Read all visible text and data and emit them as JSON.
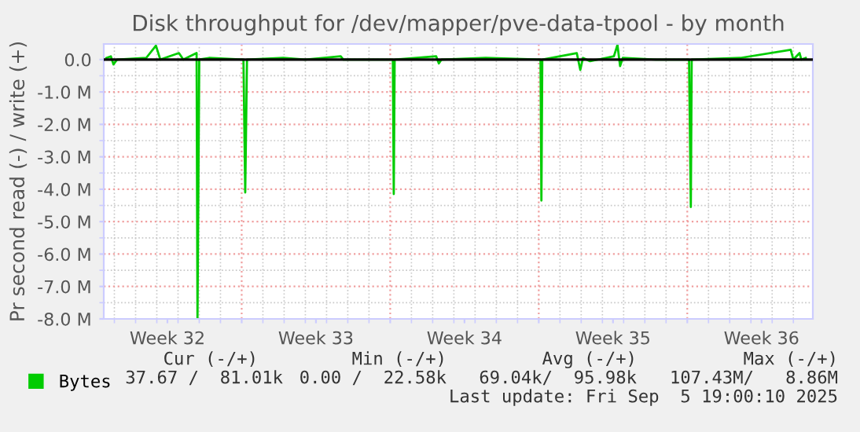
{
  "chart_data": {
    "type": "line",
    "title": "Disk throughput for /dev/mapper/pve-data-tpool - by month",
    "ylabel": "Pr second read (-) / write (+)",
    "x": [
      "2025-08-04T15:00",
      "2025-08-04T20:00",
      "2025-08-04T23:00",
      "2025-08-05T03:00",
      "2025-08-06T12:00",
      "2025-08-06T23:00",
      "2025-08-07T04:00",
      "2025-08-08T01:00",
      "2025-08-08T06:00",
      "2025-08-08T21:00",
      "2025-08-08T22:00",
      "2025-08-09T00:00",
      "2025-08-09T11:00",
      "2025-08-11T02:00",
      "2025-08-11T04:00",
      "2025-08-11T06:00",
      "2025-08-12T23:00",
      "2025-08-14T00:00",
      "2025-08-15T16:00",
      "2025-08-15T19:00",
      "2025-08-18T03:00",
      "2025-08-18T04:00",
      "2025-08-18T05:00",
      "2025-08-20T04:00",
      "2025-08-20T07:00",
      "2025-08-20T10:00",
      "2025-08-22T12:00",
      "2025-08-25T02:00",
      "2025-08-25T03:00",
      "2025-08-25T04:00",
      "2025-08-26T19:00",
      "2025-08-26T23:00",
      "2025-08-27T02:00",
      "2025-08-27T10:00",
      "2025-08-28T13:00",
      "2025-08-28T17:00",
      "2025-08-28T20:00",
      "2025-08-28T23:00",
      "2025-08-30T12:00",
      "2025-09-01T02:00",
      "2025-09-01T04:00",
      "2025-09-01T05:00",
      "2025-09-03T12:00",
      "2025-09-05T21:00",
      "2025-09-06T00:00",
      "2025-09-06T07:00",
      "2025-09-06T09:00",
      "2025-09-06T14:00"
    ],
    "series": [
      {
        "name": "Bytes",
        "color": "#00cc00",
        "values": [
          50000,
          100000,
          -150000,
          0,
          50000,
          430000,
          0,
          200000,
          0,
          200000,
          -8000000,
          0,
          50000,
          0,
          -4100000,
          0,
          50000,
          0,
          100000,
          0,
          0,
          -4150000,
          0,
          100000,
          -120000,
          0,
          50000,
          0,
          -4350000,
          0,
          200000,
          -320000,
          50000,
          -50000,
          100000,
          450000,
          -200000,
          50000,
          0,
          0,
          -4550000,
          0,
          50000,
          300000,
          0,
          200000,
          0,
          50000
        ]
      }
    ],
    "xlim": [
      "2025-08-04T12:00",
      "2025-09-06T22:00"
    ],
    "xticks": [
      {
        "value": "2025-08-07T12:00",
        "label": "Week 32"
      },
      {
        "value": "2025-08-11",
        "label": null
      },
      {
        "value": "2025-08-14T12:00",
        "label": "Week 33"
      },
      {
        "value": "2025-08-18",
        "label": null
      },
      {
        "value": "2025-08-21T12:00",
        "label": "Week 34"
      },
      {
        "value": "2025-08-25",
        "label": null
      },
      {
        "value": "2025-08-28T12:00",
        "label": "Week 35"
      },
      {
        "value": "2025-09-01",
        "label": null
      },
      {
        "value": "2025-09-04T12:00",
        "label": "Week 36"
      }
    ],
    "ylim": [
      -8000000,
      480000
    ],
    "yticks": [
      {
        "value": -8000000,
        "label": "-8.0 M"
      },
      {
        "value": -7000000,
        "label": "-7.0 M"
      },
      {
        "value": -6000000,
        "label": "-6.0 M"
      },
      {
        "value": -5000000,
        "label": "-5.0 M"
      },
      {
        "value": -4000000,
        "label": "-4.0 M"
      },
      {
        "value": -3000000,
        "label": "-3.0 M"
      },
      {
        "value": -2000000,
        "label": "-2.0 M"
      },
      {
        "value": -1000000,
        "label": "-1.0 M"
      },
      {
        "value": 0,
        "label": "0.0"
      }
    ],
    "ref_lines": [
      {
        "axis": "y",
        "value": 0,
        "label": null,
        "color": "#000000"
      }
    ],
    "grid": true,
    "legend": "bottom",
    "marker": "none",
    "line_style": "solid",
    "annotations": [
      "Cur (-/+)",
      "Min (-/+)",
      "Avg (-/+)",
      "Max (-/+)",
      "37.67 /  81.01k",
      "0.00 /  22.58k",
      "69.04k/  95.98k",
      "107.43M/   8.86M",
      "Last update: Fri Sep  5 19:00:10 2025"
    ]
  }
}
